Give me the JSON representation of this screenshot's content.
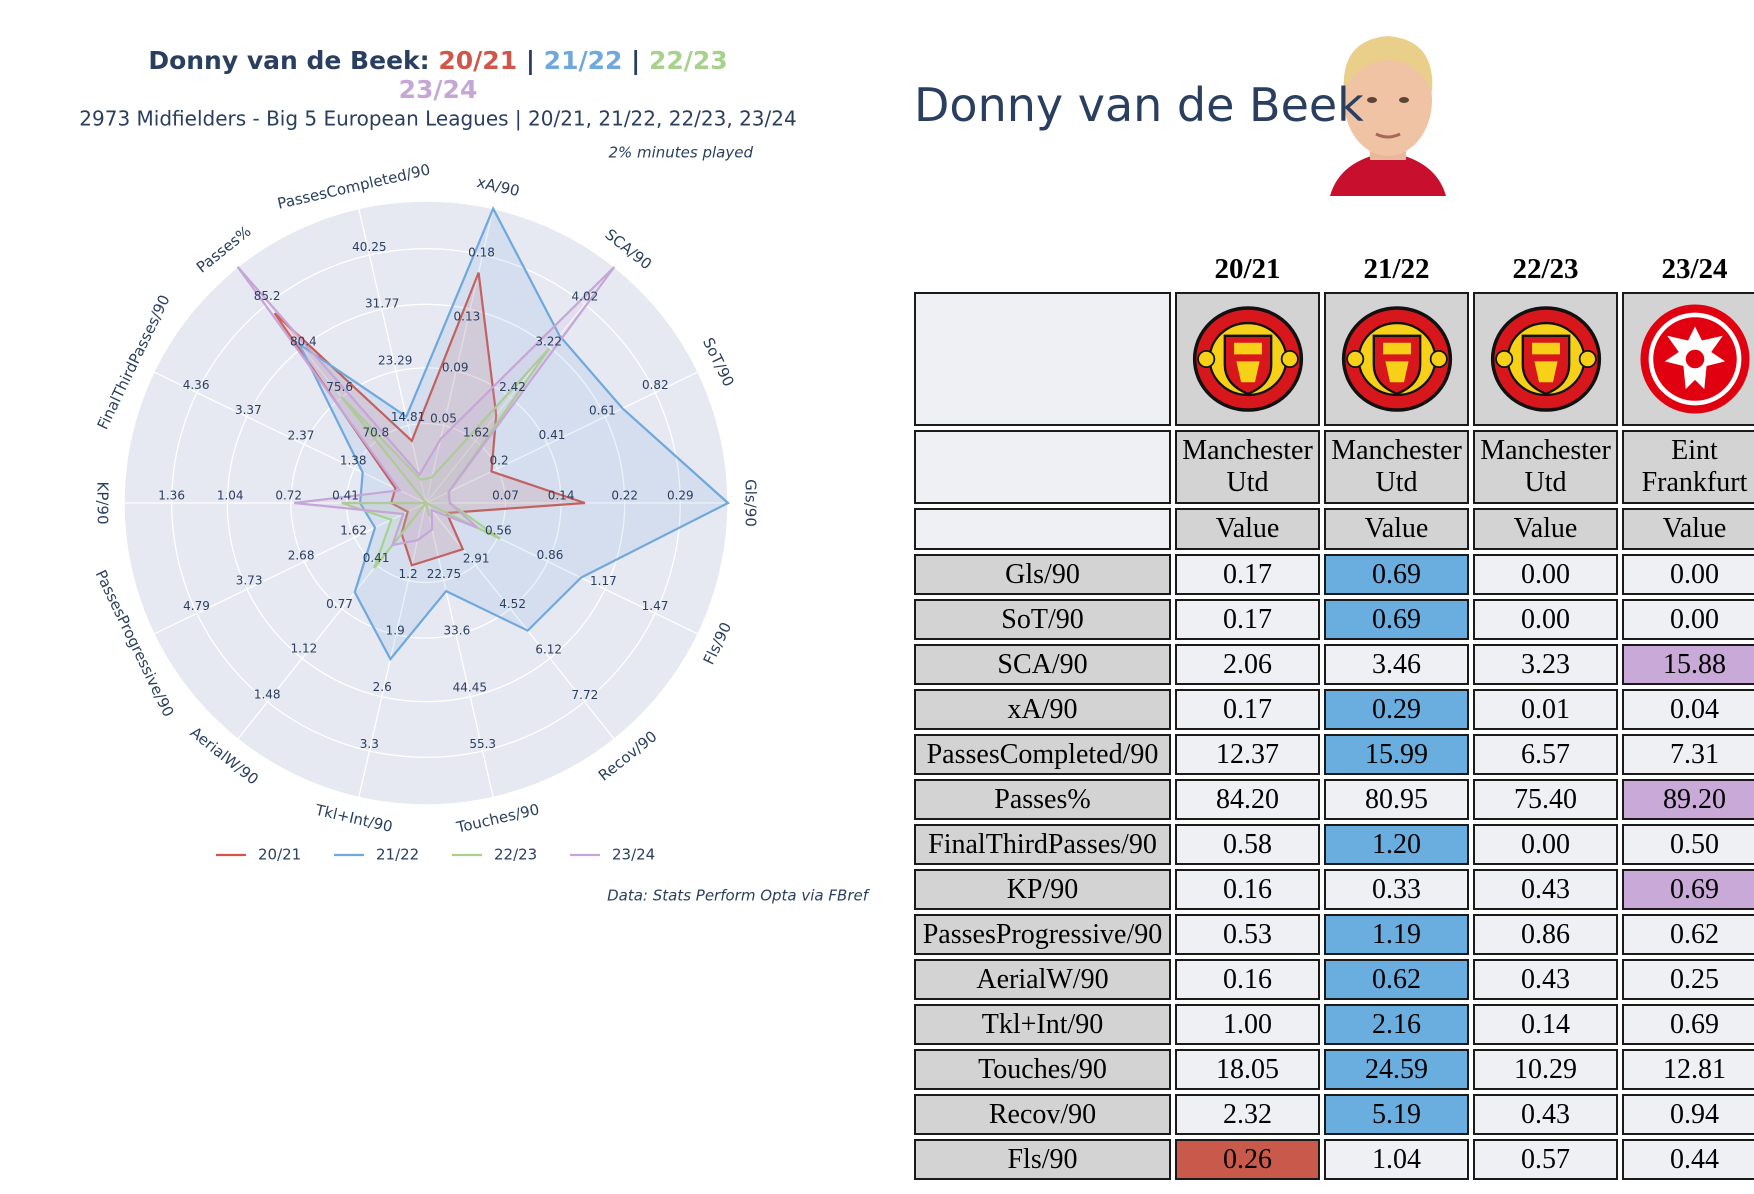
{
  "chart_data": {
    "type": "radar",
    "title": "Donny van de Beek",
    "title_separator": ":",
    "season_separator": "|",
    "subtitle": "2973 Midfielders - Big 5 European Leagues | 20/21, 21/22, 22/23, 23/24",
    "annotation": "2% minutes played",
    "source": "Data: Stats Perform Opta via FBref",
    "grid": true,
    "axes": [
      {
        "name": "Gls/90",
        "rlim": [
          -0.03,
          0.35
        ],
        "ticks": [
          0.07,
          0.14,
          0.22,
          0.29
        ]
      },
      {
        "name": "SoT/90",
        "rlim": [
          -0.09,
          0.99
        ],
        "ticks": [
          0.2,
          0.41,
          0.61,
          0.82
        ]
      },
      {
        "name": "SCA/90",
        "rlim": [
          0.51,
          4.67
        ],
        "ticks": [
          1.62,
          2.42,
          3.22,
          4.02
        ]
      },
      {
        "name": "xA/90",
        "rlim": [
          -0.01,
          0.22
        ],
        "ticks": [
          0.05,
          0.09,
          0.13,
          0.18
        ]
      },
      {
        "name": "PassesCompleted/90",
        "rlim": [
          3.07,
          47.12
        ],
        "ticks": [
          14.81,
          23.29,
          31.77,
          40.25
        ]
      },
      {
        "name": "Passes%",
        "rlim": [
          64.15,
          89.09
        ],
        "ticks": [
          70.8,
          75.6,
          80.4,
          85.2
        ]
      },
      {
        "name": "FinalThirdPasses/90",
        "rlim": [
          0,
          5.16
        ],
        "ticks": [
          1.38,
          2.37,
          3.37,
          4.36
        ]
      },
      {
        "name": "KP/90",
        "rlim": [
          -0.03,
          1.62
        ],
        "ticks": [
          0.41,
          0.72,
          1.04,
          1.36
        ]
      },
      {
        "name": "PassesProgressive/90",
        "rlim": [
          0.16,
          5.65
        ],
        "ticks": [
          1.62,
          2.68,
          3.73,
          4.79
        ]
      },
      {
        "name": "AerialW/90",
        "rlim": [
          -0.08,
          1.77
        ],
        "ticks": [
          0.41,
          0.77,
          1.12,
          1.48
        ]
      },
      {
        "name": "Tkl+Int/90",
        "rlim": [
          0.23,
          3.87
        ],
        "ticks": [
          1.2,
          1.9,
          2.6,
          3.3
        ]
      },
      {
        "name": "Touches/90",
        "rlim": [
          7.72,
          64.09
        ],
        "ticks": [
          22.75,
          33.6,
          44.45,
          55.3
        ]
      },
      {
        "name": "Recov/90",
        "rlim": [
          0.69,
          9.02
        ],
        "ticks": [
          2.91,
          4.52,
          6.12,
          7.72
        ]
      },
      {
        "name": "Fls/90",
        "rlim": [
          0.14,
          1.72
        ],
        "ticks": [
          0.56,
          0.86,
          1.17,
          1.47
        ]
      }
    ],
    "series": [
      {
        "name": "20/21",
        "color": "#d0564a",
        "values": [
          0.17,
          0.17,
          2.06,
          0.17,
          12.37,
          84.2,
          0.58,
          0.16,
          0.53,
          0.16,
          1.0,
          18.05,
          2.32,
          0.26
        ]
      },
      {
        "name": "21/22",
        "color": "#6fa8dc",
        "values": [
          0.35,
          0.69,
          3.46,
          0.22,
          15.99,
          80.95,
          1.2,
          0.33,
          1.19,
          0.62,
          2.16,
          24.59,
          5.19,
          1.04
        ]
      },
      {
        "name": "22/23",
        "color": "#a9d18e",
        "values": [
          0,
          0,
          3.23,
          0.01,
          6.57,
          75.4,
          0,
          0.43,
          0.86,
          0.43,
          0.23,
          10.29,
          0.69,
          0.57
        ]
      },
      {
        "name": "23/24",
        "color": "#c6a6d6",
        "values": [
          0,
          0,
          4.67,
          0.04,
          7.31,
          89.09,
          0.5,
          0.69,
          0.62,
          0.25,
          0.69,
          12.81,
          0.94,
          0.44
        ]
      }
    ]
  },
  "player": {
    "name": "Donny van de Beek"
  },
  "table": {
    "seasons": [
      "20/21",
      "21/22",
      "22/23",
      "23/24"
    ],
    "teams": [
      "Manchester Utd",
      "Manchester Utd",
      "Manchester Utd",
      "Eint Frankfurt"
    ],
    "column_label": "Value",
    "highlight_colors": [
      "#c9594a",
      "#6aaee0",
      "#a9d18e",
      "#c8a9d8"
    ],
    "rows": [
      {
        "label": "Gls/90",
        "values": [
          "0.17",
          "0.69",
          "0.00",
          "0.00"
        ],
        "highlight": 1
      },
      {
        "label": "SoT/90",
        "values": [
          "0.17",
          "0.69",
          "0.00",
          "0.00"
        ],
        "highlight": 1
      },
      {
        "label": "SCA/90",
        "values": [
          "2.06",
          "3.46",
          "3.23",
          "15.88"
        ],
        "highlight": 3
      },
      {
        "label": "xA/90",
        "values": [
          "0.17",
          "0.29",
          "0.01",
          "0.04"
        ],
        "highlight": 1
      },
      {
        "label": "PassesCompleted/90",
        "values": [
          "12.37",
          "15.99",
          "6.57",
          "7.31"
        ],
        "highlight": 1
      },
      {
        "label": "Passes%",
        "values": [
          "84.20",
          "80.95",
          "75.40",
          "89.20"
        ],
        "highlight": 3
      },
      {
        "label": "FinalThirdPasses/90",
        "values": [
          "0.58",
          "1.20",
          "0.00",
          "0.50"
        ],
        "highlight": 1
      },
      {
        "label": "KP/90",
        "values": [
          "0.16",
          "0.33",
          "0.43",
          "0.69"
        ],
        "highlight": 3
      },
      {
        "label": "PassesProgressive/90",
        "values": [
          "0.53",
          "1.19",
          "0.86",
          "0.62"
        ],
        "highlight": 1
      },
      {
        "label": "AerialW/90",
        "values": [
          "0.16",
          "0.62",
          "0.43",
          "0.25"
        ],
        "highlight": 1
      },
      {
        "label": "Tkl+Int/90",
        "values": [
          "1.00",
          "2.16",
          "0.14",
          "0.69"
        ],
        "highlight": 1
      },
      {
        "label": "Touches/90",
        "values": [
          "18.05",
          "24.59",
          "10.29",
          "12.81"
        ],
        "highlight": 1
      },
      {
        "label": "Recov/90",
        "values": [
          "2.32",
          "5.19",
          "0.43",
          "0.94"
        ],
        "highlight": 1
      },
      {
        "label": "Fls/90",
        "values": [
          "0.26",
          "1.04",
          "0.57",
          "0.44"
        ],
        "highlight": 0
      }
    ]
  }
}
